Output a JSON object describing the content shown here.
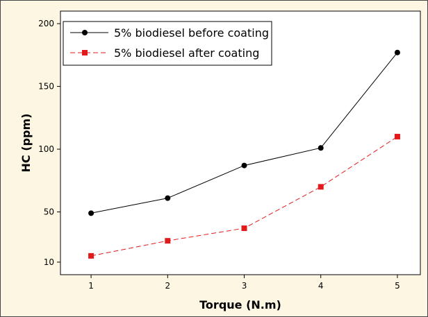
{
  "chart_data": {
    "type": "line",
    "xlabel": "Torque (N.m)",
    "ylabel": "HC (ppm)",
    "x": [
      1,
      2,
      3,
      4,
      5
    ],
    "xlim": [
      0.6,
      5.3
    ],
    "ylim": [
      0,
      210
    ],
    "xticks": [
      "1",
      "2",
      "3",
      "4",
      "5"
    ],
    "yticks": [
      10,
      50,
      100,
      150,
      200
    ],
    "grid": false,
    "legend_position": "top-left",
    "series": [
      {
        "name": "5% biodiesel before coating",
        "values": [
          49,
          61,
          87,
          101,
          177
        ],
        "color": "#000000",
        "marker": "circle",
        "line": "solid"
      },
      {
        "name": "5% biodiesel after coating",
        "values": [
          15,
          27,
          37,
          70,
          110
        ],
        "color": "#e31a1c",
        "marker": "square",
        "line": "dashed"
      }
    ]
  }
}
